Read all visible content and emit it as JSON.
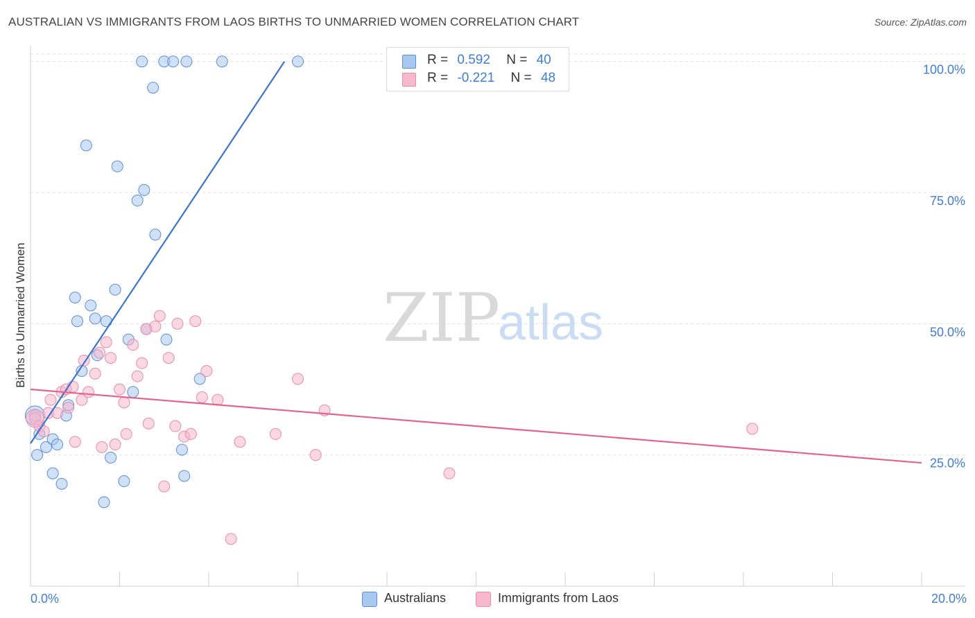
{
  "title": "AUSTRALIAN VS IMMIGRANTS FROM LAOS BIRTHS TO UNMARRIED WOMEN CORRELATION CHART",
  "source": "Source: ZipAtlas.com",
  "watermark": {
    "zip": "ZIP",
    "atlas": "atlas"
  },
  "colors": {
    "blue_fill": "#a9c8f0",
    "blue_stroke": "#5b8ed6",
    "blue_line": "#3a74cc",
    "pink_fill": "#f5b8cc",
    "pink_stroke": "#e98aaa",
    "pink_line": "#e3628e",
    "axis_text": "#3f7cd4"
  },
  "legend_top": {
    "rows": [
      {
        "r_label": "R =",
        "r_value": "0.592",
        "n_label": "N =",
        "n_value": "40"
      },
      {
        "r_label": "R =",
        "r_value": "-0.221",
        "n_label": "N =",
        "n_value": "48"
      }
    ]
  },
  "legend_bottom": {
    "items": [
      "Australians",
      "Immigrants from Laos"
    ]
  },
  "chart_data": {
    "type": "scatter",
    "xlabel": "",
    "ylabel": "Births to Unmarried Women",
    "xlim": [
      0,
      20
    ],
    "ylim": [
      0,
      103
    ],
    "x_tick_labels": {
      "left": "0.0%",
      "right": "20.0%"
    },
    "y_ticks": [
      25,
      50,
      75,
      100
    ],
    "y_tick_labels": [
      "25.0%",
      "50.0%",
      "75.0%",
      "100.0%"
    ],
    "grid": true,
    "series": [
      {
        "name": "Australians",
        "R": 0.592,
        "N": 40,
        "trend": {
          "x": [
            0.0,
            5.7
          ],
          "y": [
            27.2,
            100.0
          ]
        },
        "points": [
          [
            0.1,
            32.5
          ],
          [
            0.15,
            25.0
          ],
          [
            0.2,
            29.0
          ],
          [
            0.35,
            26.5
          ],
          [
            0.5,
            28.0
          ],
          [
            0.5,
            21.5
          ],
          [
            0.6,
            27.0
          ],
          [
            0.7,
            19.5
          ],
          [
            0.8,
            32.5
          ],
          [
            0.85,
            34.5
          ],
          [
            1.0,
            55.0
          ],
          [
            1.05,
            50.5
          ],
          [
            1.15,
            41.0
          ],
          [
            1.25,
            84.0
          ],
          [
            1.35,
            53.5
          ],
          [
            1.45,
            51.0
          ],
          [
            1.5,
            44.0
          ],
          [
            1.65,
            16.0
          ],
          [
            1.7,
            50.5
          ],
          [
            1.8,
            24.5
          ],
          [
            1.9,
            56.5
          ],
          [
            1.95,
            80.0
          ],
          [
            2.1,
            20.0
          ],
          [
            2.2,
            47.0
          ],
          [
            2.3,
            37.0
          ],
          [
            2.4,
            73.5
          ],
          [
            2.5,
            100.0
          ],
          [
            2.55,
            75.5
          ],
          [
            2.6,
            49.0
          ],
          [
            2.75,
            95.0
          ],
          [
            2.8,
            67.0
          ],
          [
            3.0,
            100.0
          ],
          [
            3.05,
            47.0
          ],
          [
            3.2,
            100.0
          ],
          [
            3.4,
            26.0
          ],
          [
            3.45,
            21.0
          ],
          [
            3.5,
            100.0
          ],
          [
            3.8,
            39.5
          ],
          [
            4.3,
            100.0
          ],
          [
            6.0,
            100.0
          ]
        ]
      },
      {
        "name": "Immigrants from Laos",
        "R": -0.221,
        "N": 48,
        "trend": {
          "x": [
            0.0,
            20.0
          ],
          "y": [
            37.5,
            23.5
          ]
        },
        "points": [
          [
            0.1,
            32.0
          ],
          [
            0.2,
            30.5
          ],
          [
            0.3,
            29.5
          ],
          [
            0.4,
            33.0
          ],
          [
            0.45,
            35.5
          ],
          [
            0.6,
            33.0
          ],
          [
            0.7,
            37.0
          ],
          [
            0.8,
            37.5
          ],
          [
            0.85,
            34.0
          ],
          [
            0.95,
            38.0
          ],
          [
            1.0,
            27.5
          ],
          [
            1.15,
            35.5
          ],
          [
            1.2,
            43.0
          ],
          [
            1.3,
            37.0
          ],
          [
            1.45,
            40.5
          ],
          [
            1.55,
            44.5
          ],
          [
            1.6,
            26.5
          ],
          [
            1.7,
            46.5
          ],
          [
            1.8,
            43.5
          ],
          [
            1.9,
            27.0
          ],
          [
            2.0,
            37.5
          ],
          [
            2.1,
            35.0
          ],
          [
            2.15,
            29.0
          ],
          [
            2.3,
            46.0
          ],
          [
            2.4,
            40.0
          ],
          [
            2.5,
            42.5
          ],
          [
            2.6,
            49.0
          ],
          [
            2.65,
            31.0
          ],
          [
            2.8,
            49.5
          ],
          [
            2.9,
            51.5
          ],
          [
            3.0,
            19.0
          ],
          [
            3.1,
            43.5
          ],
          [
            3.25,
            30.5
          ],
          [
            3.3,
            50.0
          ],
          [
            3.45,
            28.5
          ],
          [
            3.6,
            29.0
          ],
          [
            3.7,
            50.5
          ],
          [
            3.85,
            36.0
          ],
          [
            3.95,
            41.0
          ],
          [
            4.2,
            35.5
          ],
          [
            4.5,
            9.0
          ],
          [
            4.7,
            27.5
          ],
          [
            5.5,
            29.0
          ],
          [
            6.0,
            39.5
          ],
          [
            6.4,
            25.0
          ],
          [
            6.6,
            33.5
          ],
          [
            9.4,
            21.5
          ],
          [
            16.2,
            30.0
          ]
        ]
      }
    ]
  }
}
